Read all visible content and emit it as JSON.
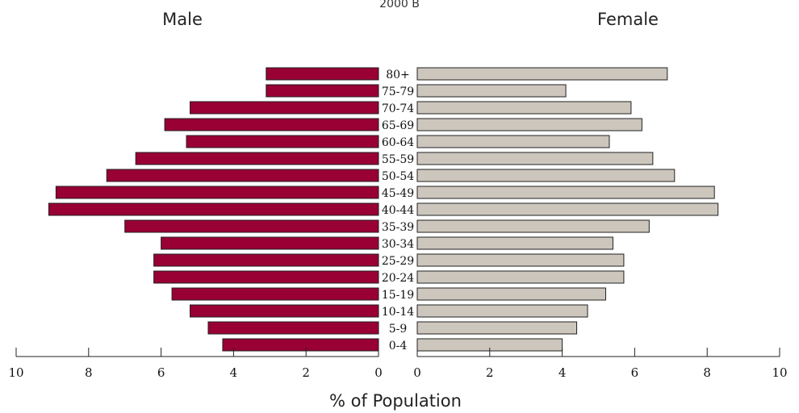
{
  "chart_data": {
    "type": "bar",
    "orientation": "horizontal-population-pyramid",
    "title_fragment": "2000 B",
    "categories": [
      "80+",
      "75-79",
      "70-74",
      "65-69",
      "60-64",
      "55-59",
      "50-54",
      "45-49",
      "40-44",
      "35-39",
      "30-34",
      "25-29",
      "20-24",
      "15-19",
      "10-14",
      "5-9",
      "0-4"
    ],
    "series": [
      {
        "name": "Male",
        "color": "#990033",
        "values": [
          3.1,
          3.1,
          5.2,
          5.9,
          5.3,
          6.7,
          7.5,
          8.9,
          9.1,
          7.0,
          6.0,
          6.2,
          6.2,
          5.7,
          5.2,
          4.7,
          4.3
        ]
      },
      {
        "name": "Female",
        "color": "#ccc6bd",
        "values": [
          6.9,
          4.1,
          5.9,
          6.2,
          5.3,
          6.5,
          7.1,
          8.2,
          8.3,
          6.4,
          5.4,
          5.7,
          5.7,
          5.2,
          4.7,
          4.4,
          4.0
        ]
      }
    ],
    "xlabel": "% of Population",
    "xlim": [
      0,
      10
    ],
    "left_ticks": [
      "10",
      "8",
      "6",
      "4",
      "2",
      "0"
    ],
    "right_ticks": [
      "0",
      "2",
      "4",
      "6",
      "8",
      "10"
    ]
  }
}
